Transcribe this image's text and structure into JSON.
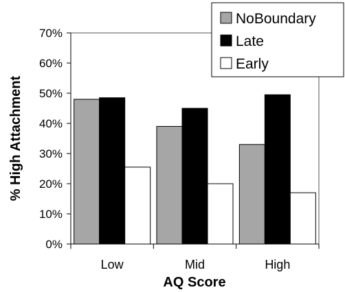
{
  "chart_data": {
    "type": "bar",
    "categories": [
      "Low",
      "Mid",
      "High"
    ],
    "series": [
      {
        "name": "NoBoundary",
        "color": "#a6a6a6",
        "values": [
          48,
          39,
          33
        ]
      },
      {
        "name": "Late",
        "color": "#000000",
        "values": [
          48.5,
          45,
          49.5
        ]
      },
      {
        "name": "Early",
        "color": "#ffffff",
        "values": [
          25.5,
          20,
          17
        ]
      }
    ],
    "xlabel": "AQ Score",
    "ylabel": "% High Attachment",
    "ylim": [
      0,
      70
    ],
    "yticks": [
      0,
      10,
      20,
      30,
      40,
      50,
      60,
      70
    ],
    "ytick_labels": [
      "0%",
      "10%",
      "20%",
      "30%",
      "40%",
      "50%",
      "60%",
      "70%"
    ],
    "grid": false,
    "legend_position": "top-right"
  }
}
